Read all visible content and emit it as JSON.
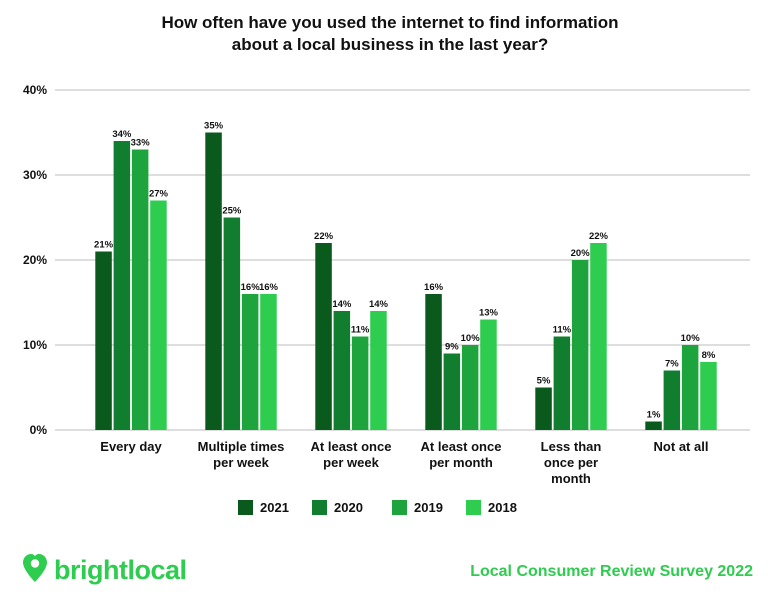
{
  "colors": {
    "series": [
      "#0b5a1d",
      "#117d2f",
      "#1ea43d",
      "#2ecc4f"
    ],
    "grid": "#bdbdbd",
    "brand": "#2ecc4f"
  },
  "brand": {
    "name": "brightlocal",
    "icon": "heart-pin-icon"
  },
  "footer": {
    "survey_label": "Local Consumer Review Survey 2022"
  },
  "chart_data": {
    "type": "bar",
    "title": "How often have you used the internet to find information about a local business in the last year?",
    "title_lines": [
      "How often have you used the internet to find information",
      "about a local business in the last year?"
    ],
    "xlabel": "",
    "ylabel": "",
    "ylim": [
      0,
      40
    ],
    "yticks": [
      0,
      10,
      20,
      30,
      40
    ],
    "ytick_labels": [
      "0%",
      "10%",
      "20%",
      "30%",
      "40%"
    ],
    "grid": true,
    "legend_position": "bottom",
    "categories": [
      "Every day",
      "Multiple times per week",
      "At least once per week",
      "At least once per month",
      "Less than once per month",
      "Not at all"
    ],
    "category_lines": [
      [
        "Every day"
      ],
      [
        "Multiple times",
        "per week"
      ],
      [
        "At least once",
        "per week"
      ],
      [
        "At least once",
        "per month"
      ],
      [
        "Less than",
        "once per",
        "month"
      ],
      [
        "Not at all"
      ]
    ],
    "series": [
      {
        "name": "2021",
        "values": [
          21,
          35,
          22,
          16,
          5,
          1
        ],
        "labels": [
          "21%",
          "35%",
          "22%",
          "16%",
          "5%",
          "1%"
        ]
      },
      {
        "name": "2020",
        "values": [
          34,
          25,
          14,
          9,
          11,
          7
        ],
        "labels": [
          "34%",
          "25%",
          "14%",
          "9%",
          "11%",
          "7%"
        ]
      },
      {
        "name": "2019",
        "values": [
          33,
          16,
          11,
          10,
          20,
          10
        ],
        "labels": [
          "33%",
          "16%",
          "11%",
          "10%",
          "20%",
          "10%"
        ]
      },
      {
        "name": "2018",
        "values": [
          27,
          16,
          14,
          13,
          22,
          8
        ],
        "labels": [
          "27%",
          "16%",
          "14%",
          "13%",
          "22%",
          "8%"
        ]
      }
    ]
  }
}
